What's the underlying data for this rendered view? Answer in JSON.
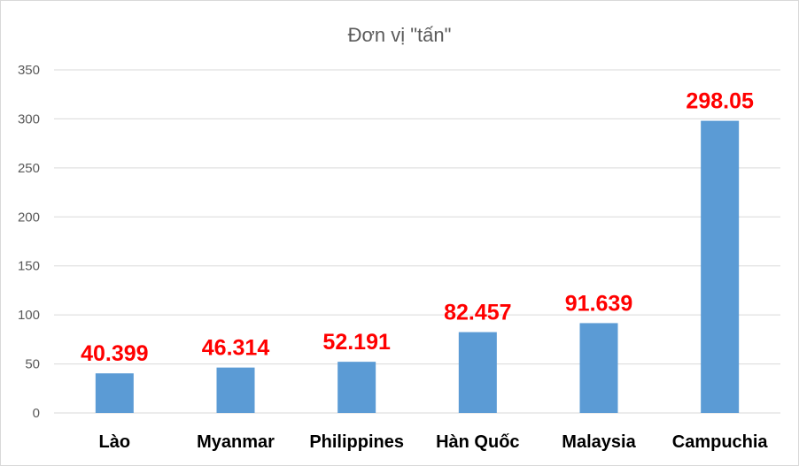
{
  "chart_data": {
    "type": "bar",
    "title": "Đơn vị \"tấn\"",
    "xlabel": "",
    "ylabel": "",
    "categories": [
      "Lào",
      "Myanmar",
      "Philippines",
      "Hàn Quốc",
      "Malaysia",
      "Campuchia"
    ],
    "values": [
      40.399,
      46.314,
      52.191,
      82.457,
      91.639,
      298.05
    ],
    "data_labels": [
      "40.399",
      "46.314",
      "52.191",
      "82.457",
      "91.639",
      "298.05"
    ],
    "ylim": [
      0,
      350
    ],
    "yticks": [
      0,
      50,
      100,
      150,
      200,
      250,
      300,
      350
    ],
    "grid": true,
    "legend": "none",
    "bar_color": "#5b9bd5",
    "data_label_color": "#ff0000",
    "gridline_color": "#d9d9d9"
  }
}
